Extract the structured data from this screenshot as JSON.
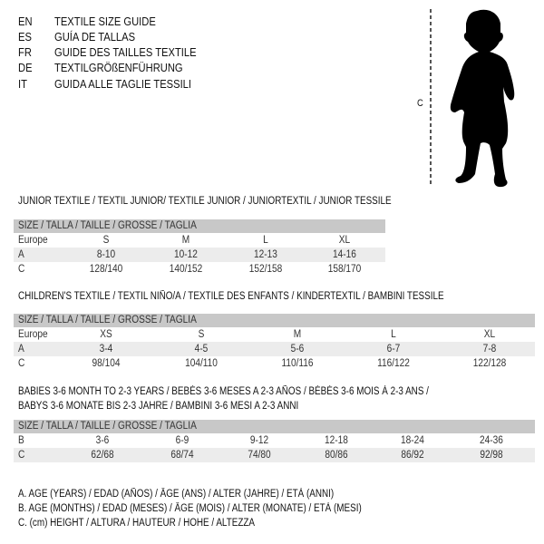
{
  "header": [
    {
      "code": "EN",
      "text": "TEXTILE SIZE GUIDE"
    },
    {
      "code": "ES",
      "text": "GUÍA DE TALLAS"
    },
    {
      "code": "FR",
      "text": "GUIDE DES TAILLES TEXTILE"
    },
    {
      "code": "DE",
      "text": "TEXTILGRÖßENFÜHRUNG"
    },
    {
      "code": "IT",
      "text": "GUIDA ALLE TAGLIE TESSILI"
    }
  ],
  "figure": {
    "measure_label": "C"
  },
  "junior": {
    "title": "JUNIOR TEXTILE / TEXTIL JUNIOR/ TEXTILE JUNIOR / JUNIORTEXTIL / JUNIOR TESSILE",
    "size_header": "SIZE / TALLA / TAILLE / GRÖSSE / TAGLIA",
    "rows": [
      {
        "label": "Europe",
        "values": [
          "S",
          "M",
          "L",
          "XL"
        ]
      },
      {
        "label": "A",
        "values": [
          "8-10",
          "10-12",
          "12-13",
          "14-16"
        ]
      },
      {
        "label": "C",
        "values": [
          "128/140",
          "140/152",
          "152/158",
          "158/170"
        ]
      }
    ]
  },
  "children": {
    "title": "CHILDREN'S TEXTILE / TEXTIL NIÑO/A / TEXTILE DES ENFANTS / KINDERTEXTIL / BAMBINI TESSILE",
    "size_header": "SIZE / TALLA / TAILLE / GRÖSSE / TAGLIA",
    "rows": [
      {
        "label": "Europe",
        "values": [
          "XS",
          "S",
          "M",
          "L",
          "XL"
        ]
      },
      {
        "label": "A",
        "values": [
          "3-4",
          "4-5",
          "5-6",
          "6-7",
          "7-8"
        ]
      },
      {
        "label": "C",
        "values": [
          "98/104",
          "104/110",
          "110/116",
          "116/122",
          "122/128"
        ]
      }
    ]
  },
  "babies": {
    "title_line1": "BABIES 3-6 MONTH TO 2-3 YEARS / BEBÉS 3-6 MESES A 2-3 AÑOS / BÉBÉS 3-6 MOIS À 2-3 ANS /",
    "title_line2": "BABYS 3-6 MONATE BIS 2-3 JAHRE / BAMBINI 3-6 MESI A 2-3 ANNI",
    "size_header": "SIZE / TALLA / TAILLE / GRÖSSE / TAGLIA",
    "rows": [
      {
        "label": "B",
        "values": [
          "3-6",
          "6-9",
          "9-12",
          "12-18",
          "18-24",
          "24-36"
        ]
      },
      {
        "label": "C",
        "values": [
          "62/68",
          "68/74",
          "74/80",
          "80/86",
          "86/92",
          "92/98"
        ]
      }
    ]
  },
  "legend": [
    "A. AGE (YEARS) / EDAD (AÑOS) / ÂGE (ANS) / ALTER (JAHRE) / ETÀ (ANNI)",
    "B. AGE (MONTHS) / EDAD (MESES) / ÂGE (MOIS) / ALTER (MONATE) / ETÀ (MESI)",
    "C. (cm) HEIGHT / ALTURA / HAUTEUR / HÖHE / ALTEZZA"
  ]
}
